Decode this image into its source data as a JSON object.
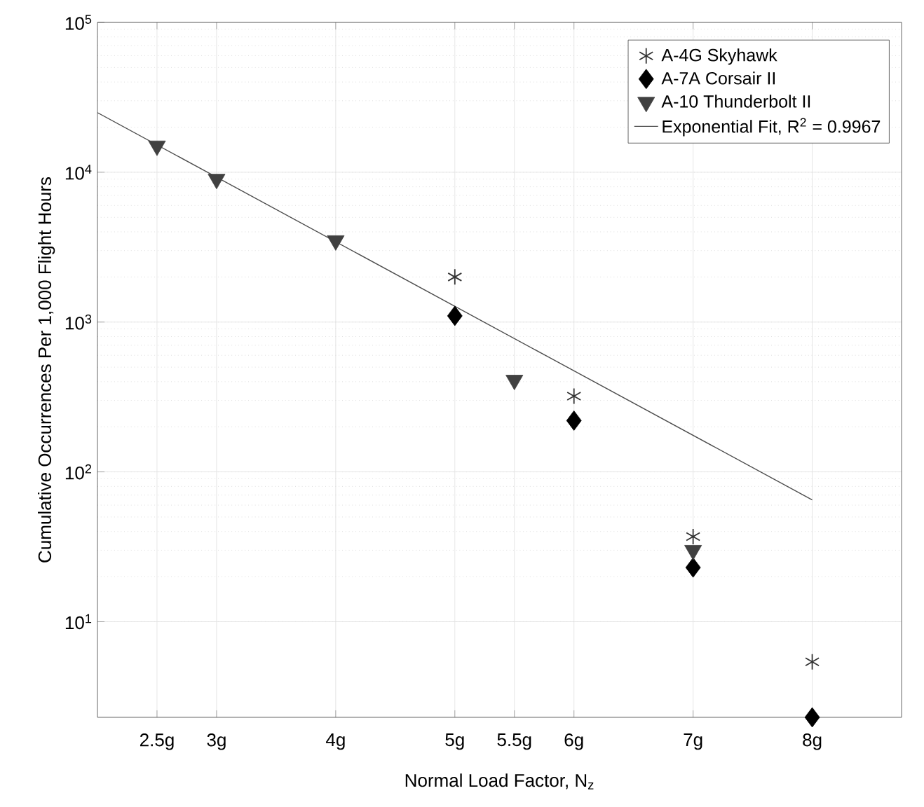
{
  "chart_data": {
    "type": "scatter",
    "xlabel": "Normal Load Factor, N$_{z}$",
    "ylabel": "Cumulative Occurrences Per 1,000 Flight Hours",
    "log": "y",
    "grid": true,
    "legend": "top right",
    "xlim": [
      2,
      8.75
    ],
    "ylim": [
      2.3,
      100000
    ],
    "xticks": [
      {
        "value": 2.5,
        "label": "2.5g"
      },
      {
        "value": 3,
        "label": "3g"
      },
      {
        "value": 4,
        "label": "4g"
      },
      {
        "value": 5,
        "label": "5g"
      },
      {
        "value": 5.5,
        "label": "5.5g"
      },
      {
        "value": 6,
        "label": "6g"
      },
      {
        "value": 7,
        "label": "7g"
      },
      {
        "value": 8,
        "label": "8g"
      }
    ],
    "yticks": [
      {
        "value": 10,
        "label": "10$^{1}$"
      },
      {
        "value": 100,
        "label": "10$^{2}$"
      },
      {
        "value": 1000,
        "label": "10$^{3}$"
      },
      {
        "value": 10000,
        "label": "10$^{4}$"
      },
      {
        "value": 100000,
        "label": "10$^{5}$"
      }
    ],
    "series": [
      {
        "name": "A-4G Skyhawk",
        "marker": "cross",
        "color": "#333333",
        "x": [
          5,
          6,
          7,
          8
        ],
        "values": [
          2000,
          320,
          37,
          5.4
        ]
      },
      {
        "name": "A-7A Corsair II",
        "marker": "diamond",
        "color": "#000000",
        "x": [
          5,
          6,
          7,
          8
        ],
        "values": [
          1100,
          220,
          23,
          2.3
        ]
      },
      {
        "name": "A-10 Thunderbolt II",
        "marker": "triangle",
        "color": "#404040",
        "x": [
          2.5,
          3,
          4,
          5.5,
          7
        ],
        "values": [
          15000,
          9000,
          3500,
          410,
          30
        ]
      },
      {
        "name": "Exponential Fit, R$^{2}$ = 0.9967",
        "type": "line",
        "marker": "none",
        "line_style": "solid",
        "color": "#4d4d4d",
        "x": [
          2,
          8
        ],
        "values": [
          25000,
          65
        ]
      }
    ]
  }
}
